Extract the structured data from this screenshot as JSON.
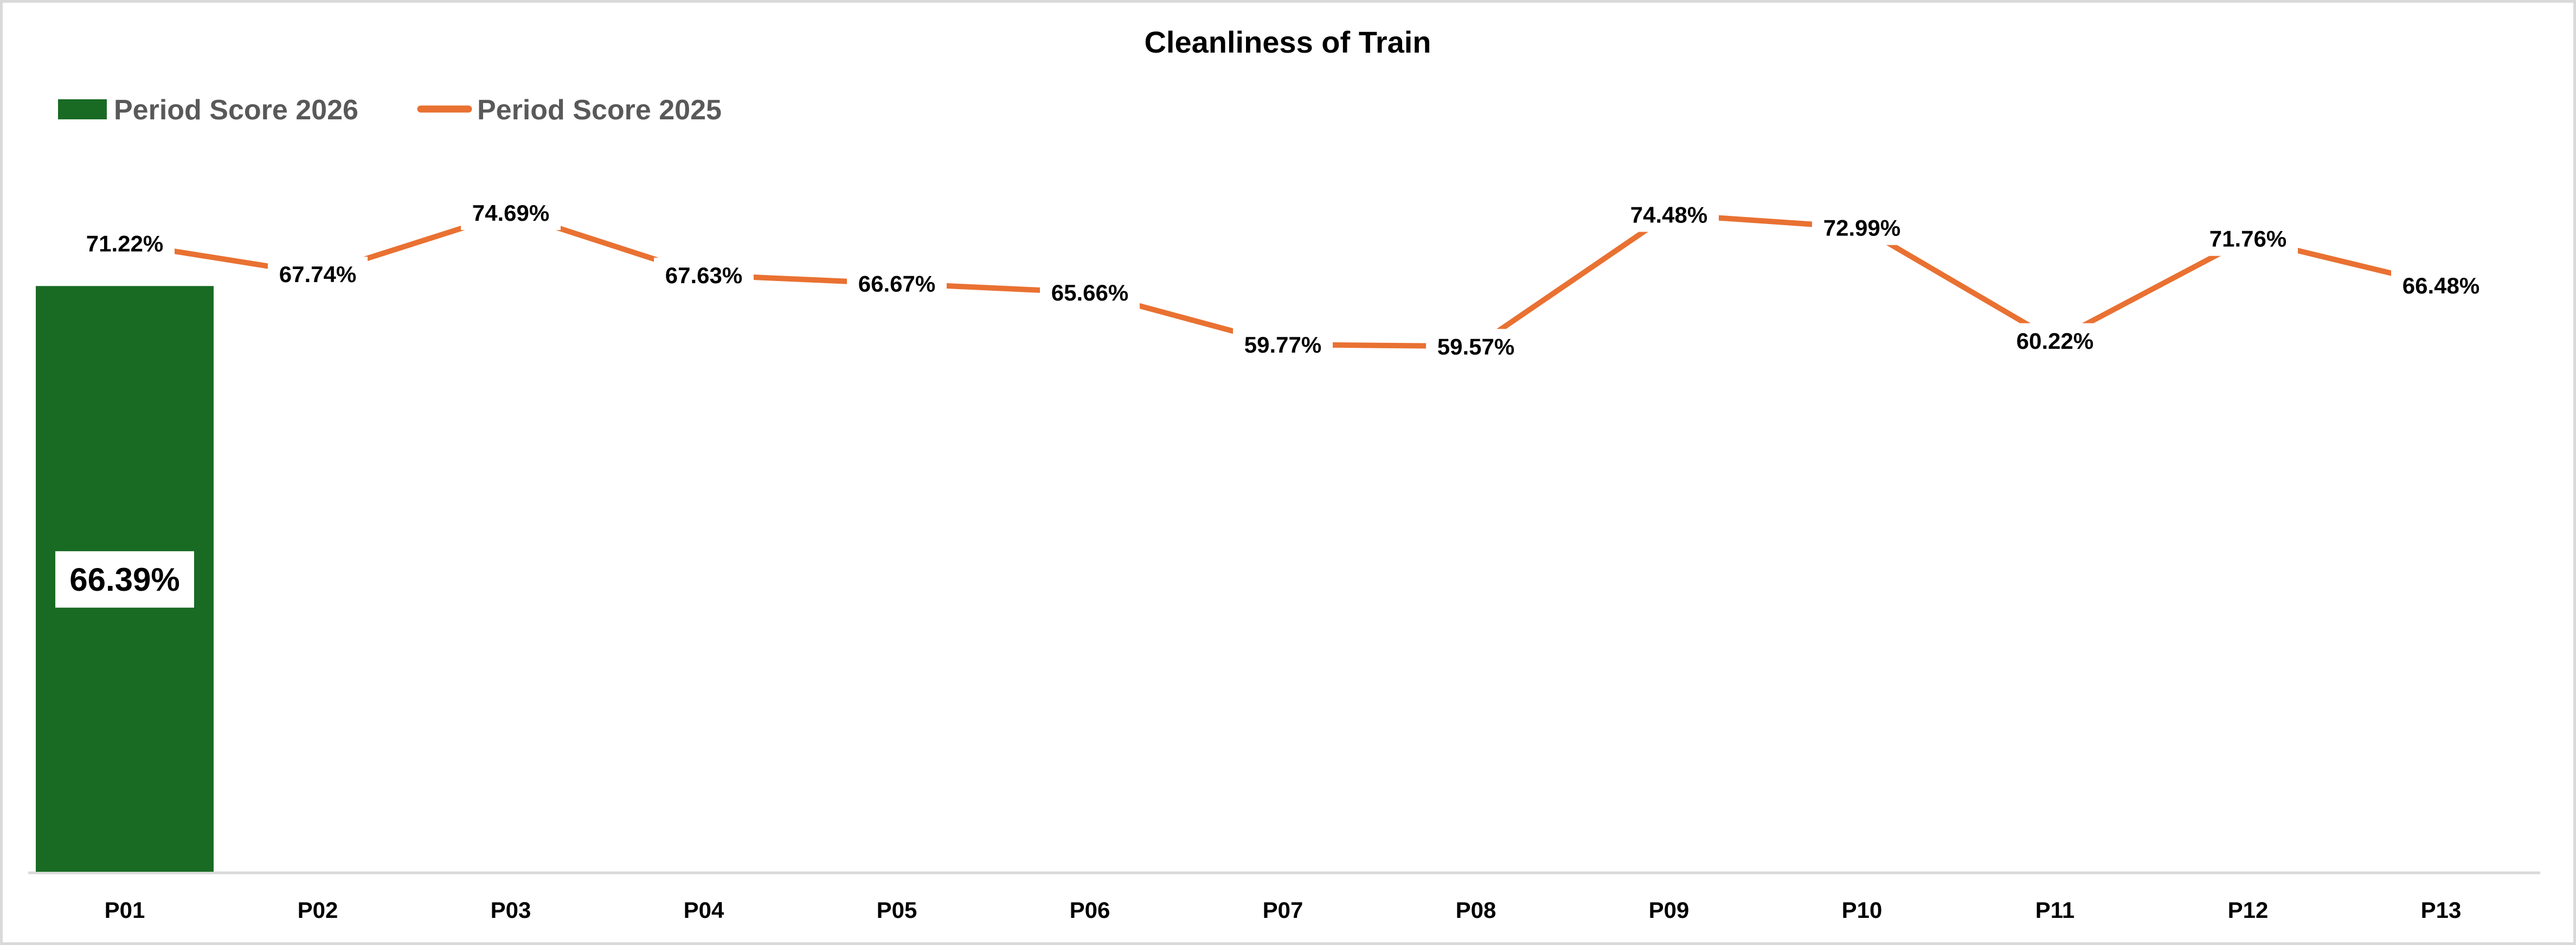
{
  "chart_data": {
    "type": "combo",
    "title": "Cleanliness of Train",
    "categories": [
      "P01",
      "P02",
      "P03",
      "P04",
      "P05",
      "P06",
      "P07",
      "P08",
      "P09",
      "P10",
      "P11",
      "P12",
      "P13"
    ],
    "series": [
      {
        "name": "Period Score 2026",
        "chart_type": "bar",
        "color": "#196B24",
        "values": [
          66.39,
          null,
          null,
          null,
          null,
          null,
          null,
          null,
          null,
          null,
          null,
          null,
          null
        ],
        "labels": [
          "66.39%",
          null,
          null,
          null,
          null,
          null,
          null,
          null,
          null,
          null,
          null,
          null,
          null
        ]
      },
      {
        "name": "Period Score 2025",
        "chart_type": "line",
        "color": "#E97132",
        "values": [
          71.22,
          67.74,
          74.69,
          67.63,
          66.67,
          65.66,
          59.77,
          59.57,
          74.48,
          72.99,
          60.22,
          71.76,
          66.48
        ],
        "labels": [
          "71.22%",
          "67.74%",
          "74.69%",
          "67.63%",
          "66.67%",
          "65.66%",
          "59.77%",
          "59.57%",
          "74.48%",
          "72.99%",
          "60.22%",
          "71.76%",
          "66.48%"
        ]
      }
    ],
    "xlabel": "",
    "ylabel": "",
    "ylim": [
      0,
      100
    ],
    "value_axis_visible": false,
    "gridlines": false,
    "legend_position": "top-left",
    "data_labels": {
      "position": "center",
      "format": "0.00%",
      "background": "#FFFFFF"
    }
  },
  "colors": {
    "background": "#FFFFFF",
    "border": "#D9D9D9",
    "axis_line": "#D9D9D9",
    "title_text": "#000000",
    "legend_text": "#595959",
    "label_text": "#000000",
    "label_bg": "#FFFFFF"
  }
}
